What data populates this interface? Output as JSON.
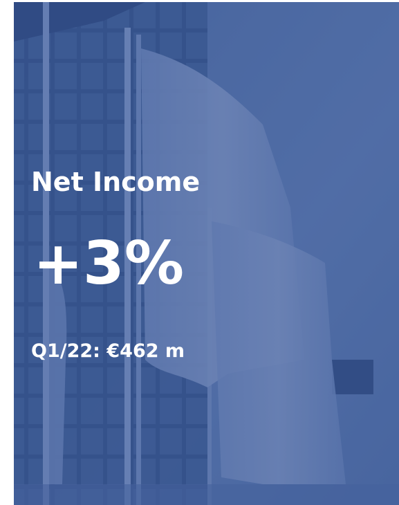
{
  "headline": "Net Income",
  "value": "+3%",
  "detail": "Q1/22: €462 m"
}
